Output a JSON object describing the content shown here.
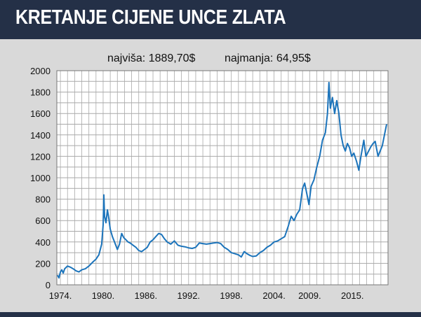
{
  "header": {
    "title": "KRETANJE CIJENE UNCE ZLATA"
  },
  "colors": {
    "header_bg": "#243047",
    "line": "#1c74bb",
    "plot_bg": "#ffffff",
    "grid": "#a9a9a9",
    "background": "#d9d9d9"
  },
  "chart_data": {
    "type": "line",
    "title": "KRETANJE CIJENE UNCE ZLATA",
    "annotations": {
      "max": "najviša: 1889,70$",
      "min": "najmanja: 64,95$"
    },
    "xlabel": "",
    "ylabel": "",
    "xlim": [
      1973.5,
      2020.0
    ],
    "ylim": [
      0,
      2000
    ],
    "y_ticks": [
      0,
      200,
      400,
      600,
      800,
      1000,
      1200,
      1400,
      1600,
      1800,
      2000
    ],
    "x_ticks": [
      {
        "value": 1974,
        "label": "1974."
      },
      {
        "value": 1980,
        "label": "1980."
      },
      {
        "value": 1986,
        "label": "1986."
      },
      {
        "value": 1992,
        "label": "1992."
      },
      {
        "value": 1998,
        "label": "1998."
      },
      {
        "value": 2004,
        "label": "2004."
      },
      {
        "value": 2009,
        "label": "2009."
      },
      {
        "value": 2015,
        "label": "2015."
      }
    ],
    "grid": true,
    "series": [
      {
        "color": "#1c74bb",
        "points": [
          [
            1973.6,
            90
          ],
          [
            1973.8,
            65
          ],
          [
            1974.0,
            120
          ],
          [
            1974.2,
            140
          ],
          [
            1974.4,
            110
          ],
          [
            1974.6,
            150
          ],
          [
            1975.0,
            175
          ],
          [
            1975.4,
            165
          ],
          [
            1975.8,
            150
          ],
          [
            1976.2,
            130
          ],
          [
            1976.6,
            120
          ],
          [
            1977.0,
            140
          ],
          [
            1977.5,
            150
          ],
          [
            1978.0,
            175
          ],
          [
            1978.5,
            210
          ],
          [
            1979.0,
            240
          ],
          [
            1979.4,
            280
          ],
          [
            1979.8,
            380
          ],
          [
            1980.0,
            560
          ],
          [
            1980.1,
            840
          ],
          [
            1980.2,
            640
          ],
          [
            1980.4,
            580
          ],
          [
            1980.6,
            700
          ],
          [
            1980.8,
            620
          ],
          [
            1981.0,
            520
          ],
          [
            1981.3,
            450
          ],
          [
            1981.6,
            400
          ],
          [
            1982.0,
            330
          ],
          [
            1982.3,
            380
          ],
          [
            1982.6,
            480
          ],
          [
            1982.9,
            440
          ],
          [
            1983.2,
            420
          ],
          [
            1983.5,
            400
          ],
          [
            1983.8,
            390
          ],
          [
            1984.2,
            370
          ],
          [
            1984.6,
            350
          ],
          [
            1985.0,
            320
          ],
          [
            1985.4,
            310
          ],
          [
            1985.8,
            330
          ],
          [
            1986.2,
            350
          ],
          [
            1986.6,
            400
          ],
          [
            1987.0,
            420
          ],
          [
            1987.4,
            450
          ],
          [
            1987.8,
            480
          ],
          [
            1988.2,
            470
          ],
          [
            1988.6,
            430
          ],
          [
            1989.0,
            400
          ],
          [
            1989.5,
            380
          ],
          [
            1990.0,
            410
          ],
          [
            1990.5,
            370
          ],
          [
            1991.0,
            360
          ],
          [
            1991.5,
            355
          ],
          [
            1992.0,
            345
          ],
          [
            1992.5,
            340
          ],
          [
            1993.0,
            350
          ],
          [
            1993.5,
            390
          ],
          [
            1994.0,
            385
          ],
          [
            1994.5,
            380
          ],
          [
            1995.0,
            385
          ],
          [
            1995.5,
            390
          ],
          [
            1996.0,
            395
          ],
          [
            1996.5,
            385
          ],
          [
            1997.0,
            350
          ],
          [
            1997.5,
            330
          ],
          [
            1998.0,
            300
          ],
          [
            1998.5,
            290
          ],
          [
            1999.0,
            280
          ],
          [
            1999.4,
            260
          ],
          [
            1999.8,
            310
          ],
          [
            2000.2,
            290
          ],
          [
            2000.6,
            275
          ],
          [
            2001.0,
            265
          ],
          [
            2001.5,
            270
          ],
          [
            2002.0,
            300
          ],
          [
            2002.5,
            320
          ],
          [
            2003.0,
            350
          ],
          [
            2003.5,
            370
          ],
          [
            2004.0,
            400
          ],
          [
            2004.5,
            410
          ],
          [
            2005.0,
            430
          ],
          [
            2005.5,
            450
          ],
          [
            2006.0,
            550
          ],
          [
            2006.4,
            640
          ],
          [
            2006.8,
            600
          ],
          [
            2007.2,
            660
          ],
          [
            2007.6,
            700
          ],
          [
            2008.0,
            900
          ],
          [
            2008.3,
            950
          ],
          [
            2008.6,
            850
          ],
          [
            2008.9,
            750
          ],
          [
            2009.2,
            920
          ],
          [
            2009.6,
            980
          ],
          [
            2010.0,
            1100
          ],
          [
            2010.4,
            1200
          ],
          [
            2010.8,
            1350
          ],
          [
            2011.2,
            1420
          ],
          [
            2011.5,
            1600
          ],
          [
            2011.7,
            1889.7
          ],
          [
            2011.9,
            1650
          ],
          [
            2012.2,
            1750
          ],
          [
            2012.5,
            1600
          ],
          [
            2012.8,
            1720
          ],
          [
            2013.1,
            1600
          ],
          [
            2013.4,
            1400
          ],
          [
            2013.7,
            1300
          ],
          [
            2014.0,
            1250
          ],
          [
            2014.3,
            1320
          ],
          [
            2014.6,
            1280
          ],
          [
            2014.9,
            1200
          ],
          [
            2015.2,
            1230
          ],
          [
            2015.6,
            1150
          ],
          [
            2015.9,
            1070
          ],
          [
            2016.2,
            1200
          ],
          [
            2016.6,
            1350
          ],
          [
            2016.9,
            1200
          ],
          [
            2017.2,
            1240
          ],
          [
            2017.6,
            1290
          ],
          [
            2017.9,
            1320
          ],
          [
            2018.2,
            1340
          ],
          [
            2018.6,
            1200
          ],
          [
            2018.9,
            1250
          ],
          [
            2019.2,
            1300
          ],
          [
            2019.5,
            1400
          ],
          [
            2019.8,
            1500
          ]
        ]
      }
    ]
  }
}
